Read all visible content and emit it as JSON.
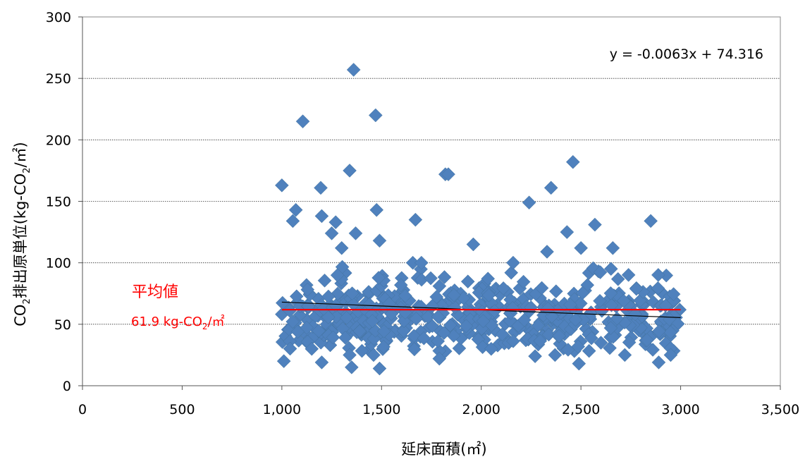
{
  "chart_data": {
    "type": "scatter",
    "xlabel": "延床面積(㎡)",
    "ylabel": {
      "pre": "CO",
      "sub": "2",
      "post": "排出原単位(kg-CO",
      "sub2": "2",
      "post2": "/㎡)"
    },
    "xlim": [
      0,
      3500
    ],
    "ylim": [
      0,
      300
    ],
    "xticks": [
      0,
      500,
      1000,
      1500,
      2000,
      2500,
      3000,
      3500
    ],
    "xtick_labels": [
      "0",
      "500",
      "1,000",
      "1,500",
      "2,000",
      "2,500",
      "3,000",
      "3,500"
    ],
    "yticks": [
      0,
      50,
      100,
      150,
      200,
      250,
      300
    ],
    "ytick_labels": [
      "0",
      "50",
      "100",
      "150",
      "200",
      "250",
      "300"
    ],
    "grid": {
      "horizontal": true,
      "vertical": false
    },
    "marker": {
      "shape": "diamond",
      "color": "#4f81bd"
    },
    "trendline": {
      "equation": "y = -0.0063x + 74.316",
      "slope": -0.0063,
      "intercept": 74.316,
      "x_range": [
        1000,
        3000
      ],
      "color": "#000000"
    },
    "average": {
      "title": "平均値",
      "value": 61.9,
      "label_value": "61.9",
      "label_unit_pre": " kg-CO",
      "label_unit_sub": "2",
      "label_unit_post": "/㎡",
      "x_range": [
        1000,
        3000
      ],
      "color": "#ff0000"
    },
    "outliers": [
      [
        1000,
        163
      ],
      [
        1105,
        215
      ],
      [
        1195,
        161
      ],
      [
        1340,
        175
      ],
      [
        1360,
        257
      ],
      [
        1470,
        220
      ],
      [
        1475,
        143
      ],
      [
        1070,
        143
      ],
      [
        1055,
        134
      ],
      [
        1200,
        138
      ],
      [
        1270,
        133
      ],
      [
        1250,
        124
      ],
      [
        1370,
        124
      ],
      [
        1670,
        135
      ],
      [
        1820,
        172
      ],
      [
        1835,
        172
      ],
      [
        1960,
        115
      ],
      [
        1490,
        118
      ],
      [
        2240,
        149
      ],
      [
        2350,
        161
      ],
      [
        2460,
        182
      ],
      [
        2330,
        109
      ],
      [
        2430,
        125
      ],
      [
        2500,
        112
      ],
      [
        2570,
        131
      ],
      [
        2660,
        112
      ],
      [
        2850,
        134
      ],
      [
        2160,
        100
      ],
      [
        1700,
        100
      ],
      [
        1300,
        112
      ]
    ],
    "low_points": [
      [
        1010,
        20
      ],
      [
        1200,
        19
      ],
      [
        1340,
        25
      ],
      [
        1350,
        15
      ],
      [
        1460,
        25
      ],
      [
        1490,
        14
      ],
      [
        1790,
        22
      ],
      [
        2270,
        24
      ],
      [
        2370,
        25
      ],
      [
        2490,
        18
      ],
      [
        2720,
        25
      ],
      [
        2890,
        19
      ],
      [
        2950,
        25
      ],
      [
        1150,
        30
      ],
      [
        2050,
        30
      ]
    ],
    "n_dense_points": 520,
    "dense_mean": 57,
    "dense_sd": 16
  }
}
